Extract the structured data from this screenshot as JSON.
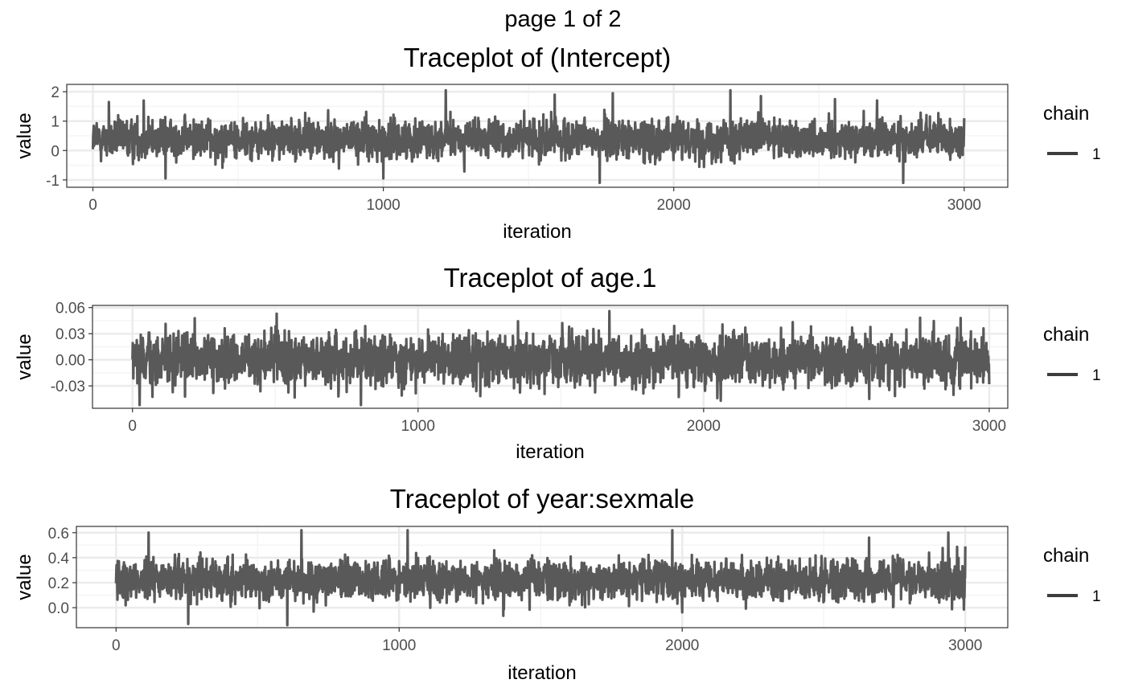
{
  "page_title": "page 1 of 2",
  "colors": {
    "trace": "#595959",
    "panel_border": "#333333",
    "grid_major": "#ebebeb",
    "grid_minor": "#f5f5f5",
    "legend_key": "#3d3d3d"
  },
  "chart_data": [
    {
      "type": "line",
      "title": "Traceplot of  (Intercept)",
      "xlabel": "iteration",
      "ylabel": "value",
      "xlim": [
        -90,
        3150
      ],
      "ylim": [
        -1.25,
        2.25
      ],
      "xticks": [
        0,
        1000,
        2000,
        3000
      ],
      "yticks": [
        -1,
        0,
        1,
        2
      ],
      "ytick_labels": [
        "-1",
        "0",
        "1",
        "2"
      ],
      "grid": true,
      "legend": {
        "title": "chain",
        "entries": [
          "1"
        ],
        "placement": "right"
      },
      "series": [
        {
          "name": "1",
          "n_iter": 3000,
          "center": 0.4,
          "spread": 0.33,
          "extremes": [
            [
              55,
              1.65
            ],
            [
              175,
              1.7
            ],
            [
              250,
              -0.95
            ],
            [
              1000,
              -0.95
            ],
            [
              1215,
              2.05
            ],
            [
              1245,
              0.25
            ],
            [
              1590,
              1.9
            ],
            [
              1745,
              -1.1
            ],
            [
              1790,
              1.95
            ],
            [
              2195,
              2.05
            ],
            [
              2300,
              1.85
            ],
            [
              2555,
              1.75
            ],
            [
              2700,
              1.7
            ],
            [
              2790,
              -1.1
            ],
            [
              2995,
              -0.15
            ],
            [
              3000,
              1.1
            ]
          ]
        }
      ]
    },
    {
      "type": "line",
      "title": "Traceplot of  age.1",
      "xlabel": "iteration",
      "ylabel": "value",
      "xlim": [
        -140,
        3065
      ],
      "ylim": [
        -0.0557,
        0.0625
      ],
      "xticks": [
        0,
        1000,
        2000,
        3000
      ],
      "yticks": [
        -0.03,
        0,
        0.03,
        0.06
      ],
      "ytick_labels": [
        "-0.03",
        "0.00",
        "0.03",
        "0.06"
      ],
      "grid": true,
      "legend": {
        "title": "chain",
        "entries": [
          "1"
        ],
        "placement": "right"
      },
      "series": [
        {
          "name": "1",
          "n_iter": 3000,
          "center": 0.0,
          "spread": 0.015,
          "extremes": [
            [
              25,
              -0.052
            ],
            [
              505,
              0.053
            ],
            [
              800,
              -0.052
            ],
            [
              1670,
              0.056
            ],
            [
              2060,
              -0.047
            ],
            [
              2900,
              0.048
            ],
            [
              3000,
              -0.028
            ]
          ]
        }
      ]
    },
    {
      "type": "line",
      "title": "Traceplot of  year:sexmale",
      "xlabel": "iteration",
      "ylabel": "value",
      "xlim": [
        -140,
        3150
      ],
      "ylim": [
        -0.16,
        0.65
      ],
      "xticks": [
        0,
        1000,
        2000,
        3000
      ],
      "yticks": [
        0.0,
        0.2,
        0.4,
        0.6
      ],
      "ytick_labels": [
        "0.0",
        "0.2",
        "0.4",
        "0.6"
      ],
      "grid": true,
      "legend": {
        "title": "chain",
        "entries": [
          "1"
        ],
        "placement": "right"
      },
      "series": [
        {
          "name": "1",
          "n_iter": 3000,
          "center": 0.22,
          "spread": 0.08,
          "extremes": [
            [
              115,
              0.6
            ],
            [
              255,
              -0.13
            ],
            [
              605,
              -0.14
            ],
            [
              655,
              0.62
            ],
            [
              1030,
              0.62
            ],
            [
              1965,
              0.62
            ],
            [
              2660,
              0.56
            ],
            [
              2940,
              0.6
            ],
            [
              3000,
              0.49
            ]
          ]
        }
      ]
    }
  ]
}
